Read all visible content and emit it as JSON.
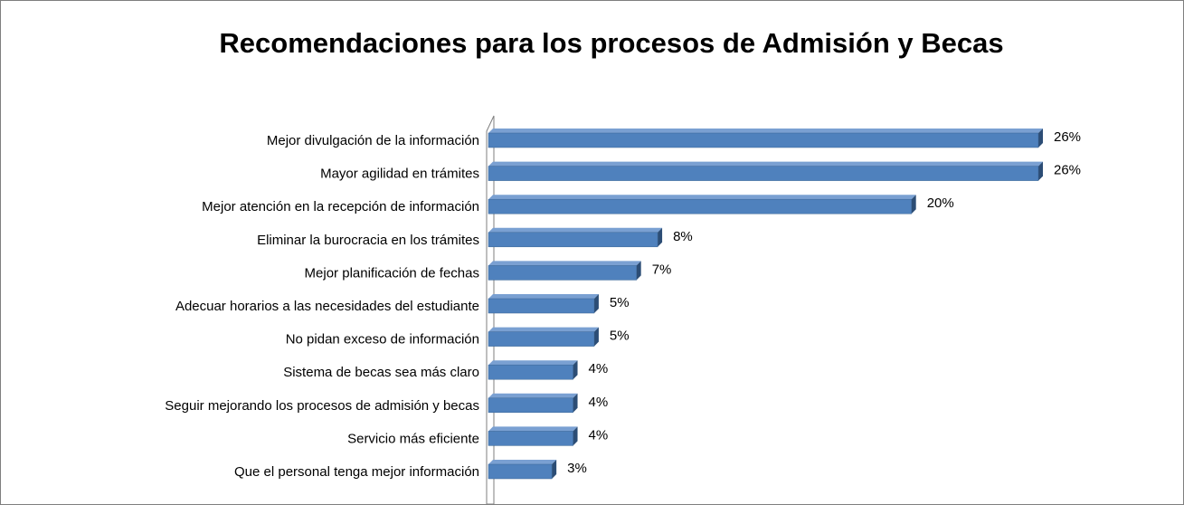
{
  "chart_data": {
    "type": "bar",
    "orientation": "horizontal",
    "title": "Recomendaciones para los procesos de Admisión y Becas",
    "categories": [
      "Mejor divulgación de la información",
      "Mayor agilidad en trámites",
      "Mejor atención en la recepción de información",
      "Eliminar la burocracia en los trámites",
      "Mejor planificación de fechas",
      "Adecuar horarios a las necesidades del estudiante",
      "No pidan exceso de información",
      "Sistema de becas sea más claro",
      "Seguir mejorando los procesos de admisión y becas",
      "Servicio más eficiente",
      "Que el personal tenga mejor información"
    ],
    "values": [
      26,
      26,
      20,
      8,
      7,
      5,
      5,
      4,
      4,
      4,
      3
    ],
    "value_labels": [
      "26%",
      "26%",
      "20%",
      "8%",
      "7%",
      "5%",
      "5%",
      "4%",
      "4%",
      "4%",
      "3%"
    ],
    "color": "#4f81bd"
  }
}
